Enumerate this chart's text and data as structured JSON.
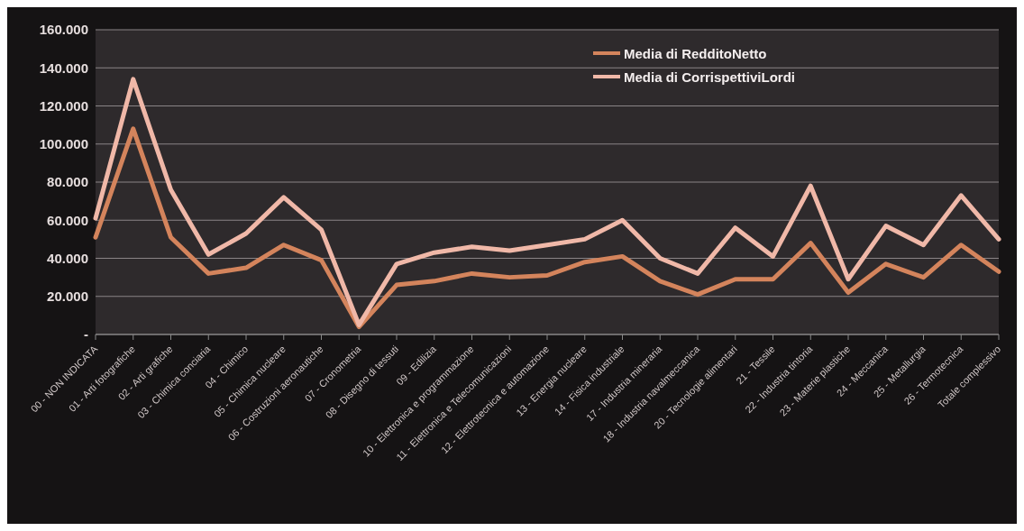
{
  "chart_data": {
    "type": "line",
    "categories": [
      "00 - NON INDICATA",
      "01 - Arti fotografiche",
      "02 - Arti grafiche",
      "03 - Chimica conciaria",
      "04 - Chimico",
      "05 - Chimica nucleare",
      "06 - Costruzioni aeronautiche",
      "07 - Cronometria",
      "08 - Disegno di tessuti",
      "09 - Edilizia",
      "10 - Elettronica e programmazione",
      "11 - Elettronica e Telecomunicazioni",
      "12 - Elettrotecnica e automazione",
      "13 - Energia nucleare",
      "14 - Fisica industriale",
      "17 - Industria mineraria",
      "18 - Industria navalmeccanica",
      "20 - Tecnologie alimentari",
      "21 - Tessile",
      "22 - Industria tintoria",
      "23 - Materie plastiche",
      "24 - Meccanica",
      "25 - Metallurgia",
      "26 - Termotecnica",
      "Totale complessivo"
    ],
    "series": [
      {
        "name": "Media di RedditoNetto",
        "color": "#d4845c",
        "values": [
          51000,
          108000,
          51000,
          32000,
          35000,
          47000,
          39000,
          4000,
          26000,
          28000,
          32000,
          30000,
          31000,
          38000,
          41000,
          28000,
          21000,
          29000,
          29000,
          48000,
          22000,
          37000,
          30000,
          47000,
          33000
        ]
      },
      {
        "name": "Media di CorrispettiviLordi",
        "color": "#f0b8a8",
        "values": [
          61000,
          134000,
          76000,
          42000,
          53000,
          72000,
          55000,
          5000,
          37000,
          43000,
          46000,
          44000,
          47000,
          50000,
          60000,
          40000,
          32000,
          56000,
          41000,
          78000,
          29000,
          57000,
          47000,
          73000,
          50000
        ]
      }
    ],
    "ylim": [
      0,
      160000
    ],
    "yticks": [
      {
        "value": 0,
        "label": "-"
      },
      {
        "value": 20000,
        "label": "20.000"
      },
      {
        "value": 40000,
        "label": "40.000"
      },
      {
        "value": 60000,
        "label": "60.000"
      },
      {
        "value": 80000,
        "label": "80.000"
      },
      {
        "value": 100000,
        "label": "100.000"
      },
      {
        "value": 120000,
        "label": "120.000"
      },
      {
        "value": 140000,
        "label": "140.000"
      },
      {
        "value": 160000,
        "label": "160.000"
      }
    ],
    "grid": "y",
    "legend": "top right",
    "marker": "none",
    "line_style": "solid"
  }
}
